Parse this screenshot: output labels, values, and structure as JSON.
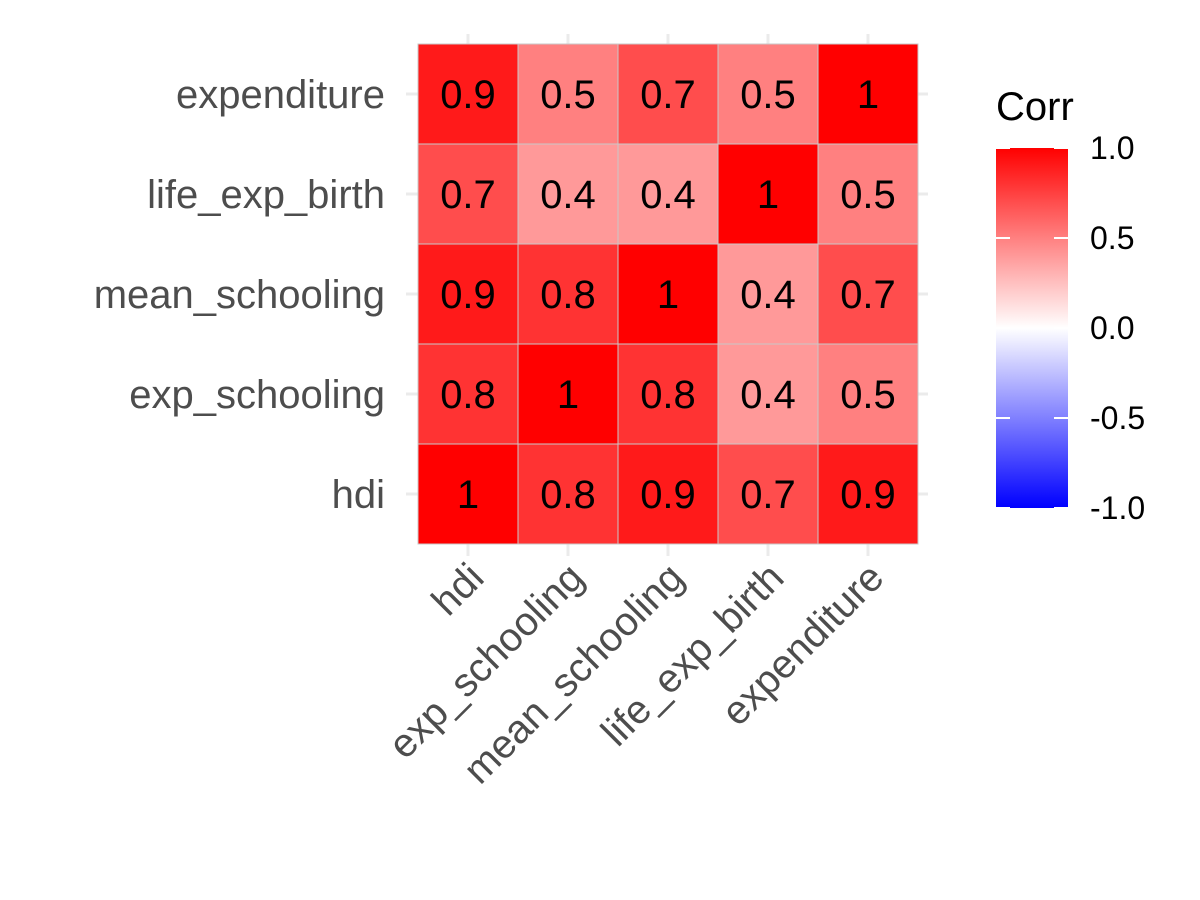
{
  "chart_data": {
    "type": "heatmap",
    "variables": [
      "hdi",
      "exp_schooling",
      "mean_schooling",
      "life_exp_birth",
      "expenditure"
    ],
    "matrix": [
      [
        1.0,
        0.8,
        0.9,
        0.7,
        0.9
      ],
      [
        0.8,
        1.0,
        0.8,
        0.4,
        0.5
      ],
      [
        0.9,
        0.8,
        1.0,
        0.4,
        0.7
      ],
      [
        0.7,
        0.4,
        0.4,
        1.0,
        0.5
      ],
      [
        0.9,
        0.5,
        0.7,
        0.5,
        1.0
      ]
    ],
    "cell_labels": [
      [
        "1",
        "0.8",
        "0.9",
        "0.7",
        "0.9"
      ],
      [
        "0.8",
        "1",
        "0.8",
        "0.4",
        "0.5"
      ],
      [
        "0.9",
        "0.8",
        "1",
        "0.4",
        "0.7"
      ],
      [
        "0.7",
        "0.4",
        "0.4",
        "1",
        "0.5"
      ],
      [
        "0.9",
        "0.5",
        "0.7",
        "0.5",
        "1"
      ]
    ],
    "legend": {
      "title": "Corr",
      "ticks": [
        1.0,
        0.5,
        0.0,
        -0.5,
        -1.0
      ],
      "tick_labels": [
        "1.0",
        "0.5",
        "0.0",
        "-0.5",
        "-1.0"
      ],
      "range": [
        -1.0,
        1.0
      ],
      "low_color": "#0000FF",
      "mid_color": "#FFFFFF",
      "high_color": "#FF0000"
    },
    "x_tick_rotation": 45,
    "grid": true,
    "legend_position": "right"
  }
}
